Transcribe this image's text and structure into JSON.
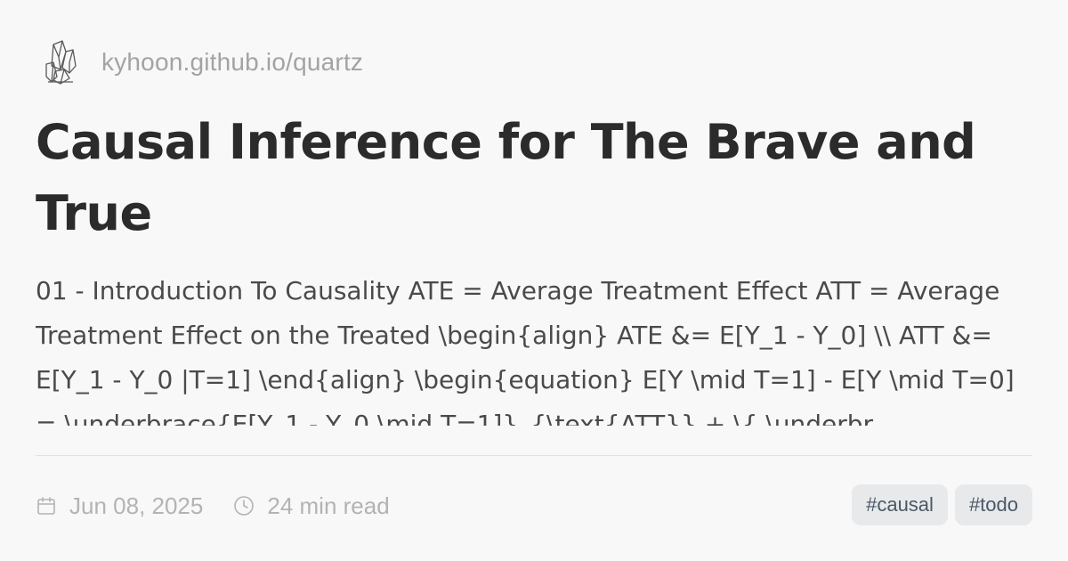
{
  "site": {
    "name": "kyhoon.github.io/quartz",
    "logo_icon": "crystal-cluster-icon"
  },
  "article": {
    "title": "Causal Inference for The Brave and True",
    "description": "01 - Introduction To Causality ATE = Average Treatment Effect ATT = Average Treatment Effect on the Treated \\begin{align} ATE &= E[Y_1 - Y_0] \\\\ ATT &= E[Y_1 - Y_0 |T=1] \\end{align} \\begin{equation} E[Y \\mid T=1] - E[Y \\mid T=0] = \\underbrace{E[Y_1 - Y_0 \\mid T=1]}_{\\text{ATT}} + \\{ \\underbr"
  },
  "meta": {
    "date": "Jun 08, 2025",
    "date_icon": "calendar-icon",
    "read_time": "24 min read",
    "read_time_icon": "clock-icon"
  },
  "tags": [
    "#causal",
    "#todo"
  ],
  "colors": {
    "background": "#f8f8f8",
    "title": "#2b2b2b",
    "body_text": "#4a4a4a",
    "muted": "#a3a3a3",
    "tag_bg": "#e8e9eb",
    "tag_text": "#4a5866"
  }
}
